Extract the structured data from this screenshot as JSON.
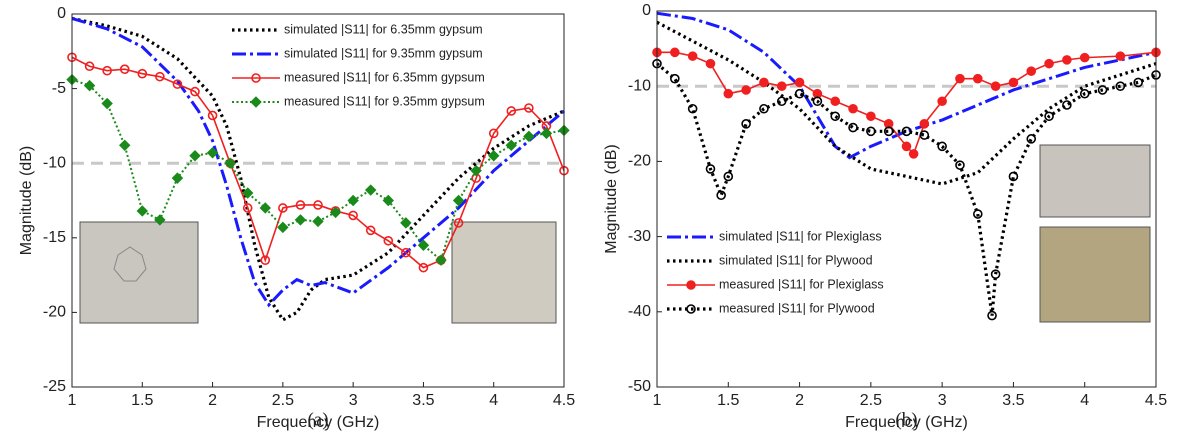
{
  "chart_data": [
    {
      "type": "line",
      "x_label": "Frequency (GHz)",
      "y_label": "Magnitude (dB)",
      "caption": "(a)",
      "xlim": [
        1,
        4.5
      ],
      "xticks": [
        1,
        1.5,
        2,
        2.5,
        3,
        3.5,
        4,
        4.5
      ],
      "ylim": [
        -25,
        0
      ],
      "yticks": [
        0,
        -5,
        -10,
        -15,
        -20,
        -25
      ],
      "reference_line": -10,
      "legend": "upper right",
      "series": [
        {
          "name": "simulated |S11| for 6.35mm gypsum",
          "color": "#000000",
          "line_style": "dotted",
          "marker": "none",
          "x": [
            1,
            1.25,
            1.5,
            1.75,
            2,
            2.1,
            2.2,
            2.3,
            2.4,
            2.5,
            2.6,
            2.7,
            2.8,
            3,
            3.25,
            3.5,
            3.75,
            4,
            4.25,
            4.5
          ],
          "values": [
            -0.3,
            -0.8,
            -1.5,
            -3,
            -5.5,
            -7.5,
            -11,
            -15.5,
            -19,
            -20.5,
            -20,
            -18.5,
            -17.8,
            -17.5,
            -16,
            -13.5,
            -11,
            -9,
            -7.5,
            -6.5
          ]
        },
        {
          "name": "simulated |S11| for 9.35mm gypsum",
          "color": "#1a1aff",
          "line_style": "dashdot",
          "marker": "none",
          "x": [
            1,
            1.25,
            1.5,
            1.75,
            1.9,
            2,
            2.1,
            2.2,
            2.3,
            2.4,
            2.5,
            2.6,
            2.7,
            2.8,
            3,
            3.25,
            3.5,
            3.75,
            4,
            4.25,
            4.5
          ],
          "values": [
            -0.3,
            -1,
            -2.2,
            -4.5,
            -6.5,
            -8.5,
            -11.5,
            -15,
            -18,
            -19.5,
            -18.5,
            -17.8,
            -18.2,
            -18,
            -18.7,
            -17,
            -15,
            -13,
            -10.5,
            -8.5,
            -6.5
          ]
        },
        {
          "name": "measured |S11| for 6.35mm gypsum",
          "color": "#f02020",
          "line_style": "solid",
          "marker": "open-circle",
          "x": [
            1,
            1.125,
            1.25,
            1.375,
            1.5,
            1.625,
            1.75,
            1.875,
            2,
            2.125,
            2.25,
            2.375,
            2.5,
            2.625,
            2.75,
            2.875,
            3,
            3.125,
            3.25,
            3.375,
            3.5,
            3.625,
            3.75,
            3.875,
            4,
            4.125,
            4.25,
            4.375,
            4.5
          ],
          "values": [
            -2.9,
            -3.5,
            -3.8,
            -3.7,
            -4,
            -4.2,
            -4.7,
            -5.2,
            -6.8,
            -10,
            -13,
            -16.5,
            -13,
            -12.8,
            -12.8,
            -13.2,
            -13.5,
            -14.5,
            -15.2,
            -16,
            -17,
            -16.5,
            -14,
            -11,
            -8,
            -6.5,
            -6.3,
            -7.5,
            -10.5
          ]
        },
        {
          "name": "measured |S11| for 9.35mm gypsum",
          "color": "#1a8a1a",
          "line_style": "dotted-thin",
          "marker": "diamond",
          "x": [
            1,
            1.125,
            1.25,
            1.375,
            1.5,
            1.625,
            1.75,
            1.875,
            2,
            2.125,
            2.25,
            2.375,
            2.5,
            2.625,
            2.75,
            2.875,
            3,
            3.125,
            3.25,
            3.375,
            3.5,
            3.625,
            3.75,
            3.875,
            4,
            4.125,
            4.25,
            4.375,
            4.5
          ],
          "values": [
            -4.4,
            -4.8,
            -6,
            -8.8,
            -13.2,
            -13.8,
            -11,
            -9.5,
            -9.3,
            -10,
            -12,
            -13,
            -14.3,
            -13.8,
            -13.9,
            -13.3,
            -12.5,
            -11.8,
            -12.5,
            -14,
            -15.5,
            -16.5,
            -12.5,
            -10.5,
            -9.5,
            -8.8,
            -8.2,
            -8,
            -7.8
          ]
        }
      ]
    },
    {
      "type": "line",
      "x_label": "Frequency (GHz)",
      "y_label": "Magnitude (dB)",
      "caption": "(b)",
      "xlim": [
        1,
        4.5
      ],
      "xticks": [
        1,
        1.5,
        2,
        2.5,
        3,
        3.5,
        4,
        4.5
      ],
      "ylim": [
        -50,
        0
      ],
      "yticks": [
        0,
        -10,
        -20,
        -30,
        -40,
        -50
      ],
      "reference_line": -10,
      "legend": "lower left",
      "series": [
        {
          "name": "simulated |S11| for Plexiglass",
          "color": "#1a1aff",
          "line_style": "dashdot",
          "marker": "none",
          "x": [
            1,
            1.25,
            1.5,
            1.75,
            2,
            2.125,
            2.25,
            2.35,
            2.5,
            2.75,
            3,
            3.25,
            3.5,
            3.75,
            4,
            4.25,
            4.5
          ],
          "values": [
            -0.3,
            -1,
            -2.5,
            -5.5,
            -10,
            -14,
            -18,
            -19.5,
            -18,
            -16,
            -14.5,
            -12.5,
            -10.5,
            -9,
            -7.5,
            -6.5,
            -5.5
          ]
        },
        {
          "name": "simulated |S11| for Plywood",
          "color": "#000000",
          "line_style": "dotted",
          "marker": "none",
          "x": [
            1,
            1.25,
            1.5,
            1.75,
            2,
            2.25,
            2.5,
            2.75,
            3,
            3.25,
            3.5,
            3.75,
            4,
            4.25,
            4.5
          ],
          "values": [
            -1.5,
            -4,
            -6.5,
            -9.5,
            -13,
            -18,
            -21,
            -22,
            -23,
            -21.5,
            -17,
            -13,
            -10,
            -8.5,
            -7
          ]
        },
        {
          "name": "measured |S11| for Plexiglass",
          "color": "#f02020",
          "line_style": "solid",
          "marker": "filled-circle",
          "x": [
            1,
            1.125,
            1.25,
            1.375,
            1.5,
            1.625,
            1.75,
            1.875,
            2,
            2.125,
            2.25,
            2.375,
            2.5,
            2.625,
            2.75,
            2.8,
            2.875,
            3,
            3.125,
            3.25,
            3.375,
            3.5,
            3.625,
            3.75,
            3.875,
            4,
            4.25,
            4.5
          ],
          "values": [
            -5.5,
            -5.5,
            -6,
            -7,
            -11,
            -10.5,
            -9.5,
            -10,
            -9.5,
            -11,
            -12,
            -13,
            -14,
            -15,
            -18,
            -19,
            -15,
            -12,
            -9,
            -9,
            -10,
            -9.5,
            -8,
            -7,
            -6.5,
            -6.2,
            -6,
            -5.5
          ]
        },
        {
          "name": "measured |S11| for Plywood",
          "color": "#000000",
          "line_style": "dotted",
          "marker": "open-circle",
          "x": [
            1,
            1.125,
            1.25,
            1.375,
            1.45,
            1.5,
            1.625,
            1.75,
            1.875,
            2,
            2.125,
            2.25,
            2.375,
            2.5,
            2.625,
            2.75,
            2.875,
            3,
            3.125,
            3.25,
            3.35,
            3.375,
            3.5,
            3.625,
            3.75,
            3.875,
            4,
            4.125,
            4.25,
            4.375,
            4.5
          ],
          "values": [
            -7,
            -9,
            -13,
            -21,
            -24.5,
            -22,
            -15,
            -13,
            -12,
            -11,
            -12,
            -14,
            -15.5,
            -16,
            -16,
            -16,
            -16.5,
            -18,
            -20.5,
            -27,
            -40.5,
            -35,
            -22,
            -17,
            -14,
            -12.5,
            -11,
            -10.5,
            -10,
            -9.5,
            -8.5
          ]
        }
      ]
    }
  ]
}
